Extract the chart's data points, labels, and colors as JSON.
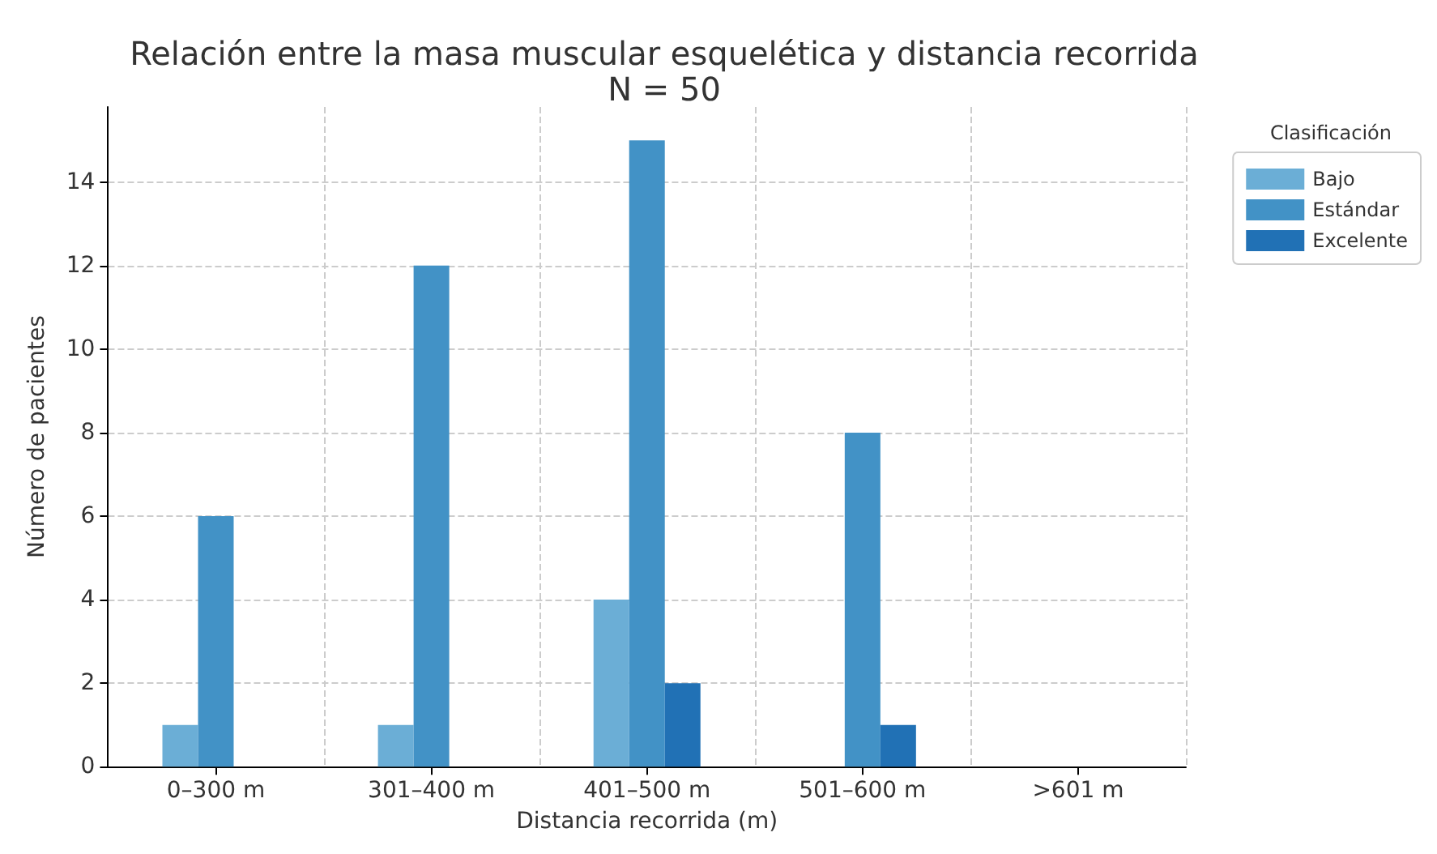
{
  "chart_data": {
    "type": "bar",
    "title": "Relación entre la masa muscular esquelética y distancia recorrida",
    "subtitle": "N = 50",
    "xlabel": "Distancia recorrida (m)",
    "ylabel": "Número de pacientes",
    "legend_title": "Clasificación",
    "categories": [
      "0–300 m",
      "301–400 m",
      "401–500 m",
      "501–600 m",
      ">601 m"
    ],
    "series": [
      {
        "name": "Bajo",
        "color": "#6baed6",
        "values": [
          1,
          1,
          4,
          0,
          0
        ]
      },
      {
        "name": "Estándar",
        "color": "#4292c6",
        "values": [
          6,
          12,
          15,
          8,
          0
        ]
      },
      {
        "name": "Excelente",
        "color": "#2171b5",
        "values": [
          0,
          0,
          2,
          1,
          0
        ]
      }
    ],
    "ylim": [
      0,
      15.8
    ],
    "yticks": [
      0,
      2,
      4,
      6,
      8,
      10,
      12,
      14
    ],
    "grid": true,
    "legend": "top right"
  }
}
